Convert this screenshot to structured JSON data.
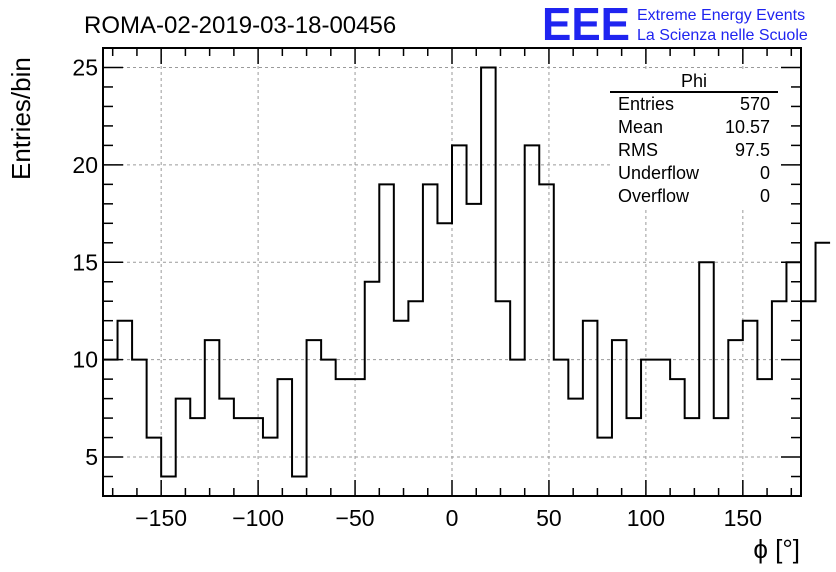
{
  "chart_data": {
    "type": "histogram",
    "title": "ROMA-02-2019-03-18-00456",
    "xlabel": "ϕ [°]",
    "ylabel": "Entries/bin",
    "xlim": [
      -180,
      180
    ],
    "ylim": [
      3,
      26
    ],
    "grid": true,
    "bin_width": 7.5,
    "bin_start": -180,
    "values": [
      10,
      12,
      10,
      6,
      4,
      8,
      7,
      11,
      8,
      7,
      7,
      6,
      9,
      4,
      11,
      10,
      9,
      9,
      14,
      19,
      12,
      13,
      19,
      17,
      21,
      18,
      25,
      13,
      10,
      21,
      19,
      10,
      8,
      12,
      6,
      11,
      7,
      10,
      10,
      9,
      7,
      15,
      7,
      11,
      12,
      9,
      13,
      15,
      13,
      16
    ],
    "x_ticks": [
      -150,
      -100,
      -50,
      0,
      50,
      100,
      150
    ],
    "x_tick_labels": [
      "−150",
      "−100",
      "−50",
      "0",
      "50",
      "100",
      "150"
    ],
    "y_ticks": [
      5,
      10,
      15,
      20,
      25
    ],
    "y_tick_labels": [
      "5",
      "10",
      "15",
      "20",
      "25"
    ],
    "stats": {
      "title": "Phi",
      "rows": [
        {
          "label": "Entries",
          "value": "570"
        },
        {
          "label": "Mean",
          "value": "10.57"
        },
        {
          "label": "RMS",
          "value": "97.5"
        },
        {
          "label": "Underflow",
          "value": "0"
        },
        {
          "label": "Overflow",
          "value": "0"
        }
      ]
    }
  },
  "logo": {
    "mark": "EEE",
    "line1": "Extreme Energy Events",
    "line2": "La Scienza nelle Scuole"
  },
  "colors": {
    "logo": "#1f24f0",
    "line": "#000000",
    "grid": "#9a9a9a"
  }
}
